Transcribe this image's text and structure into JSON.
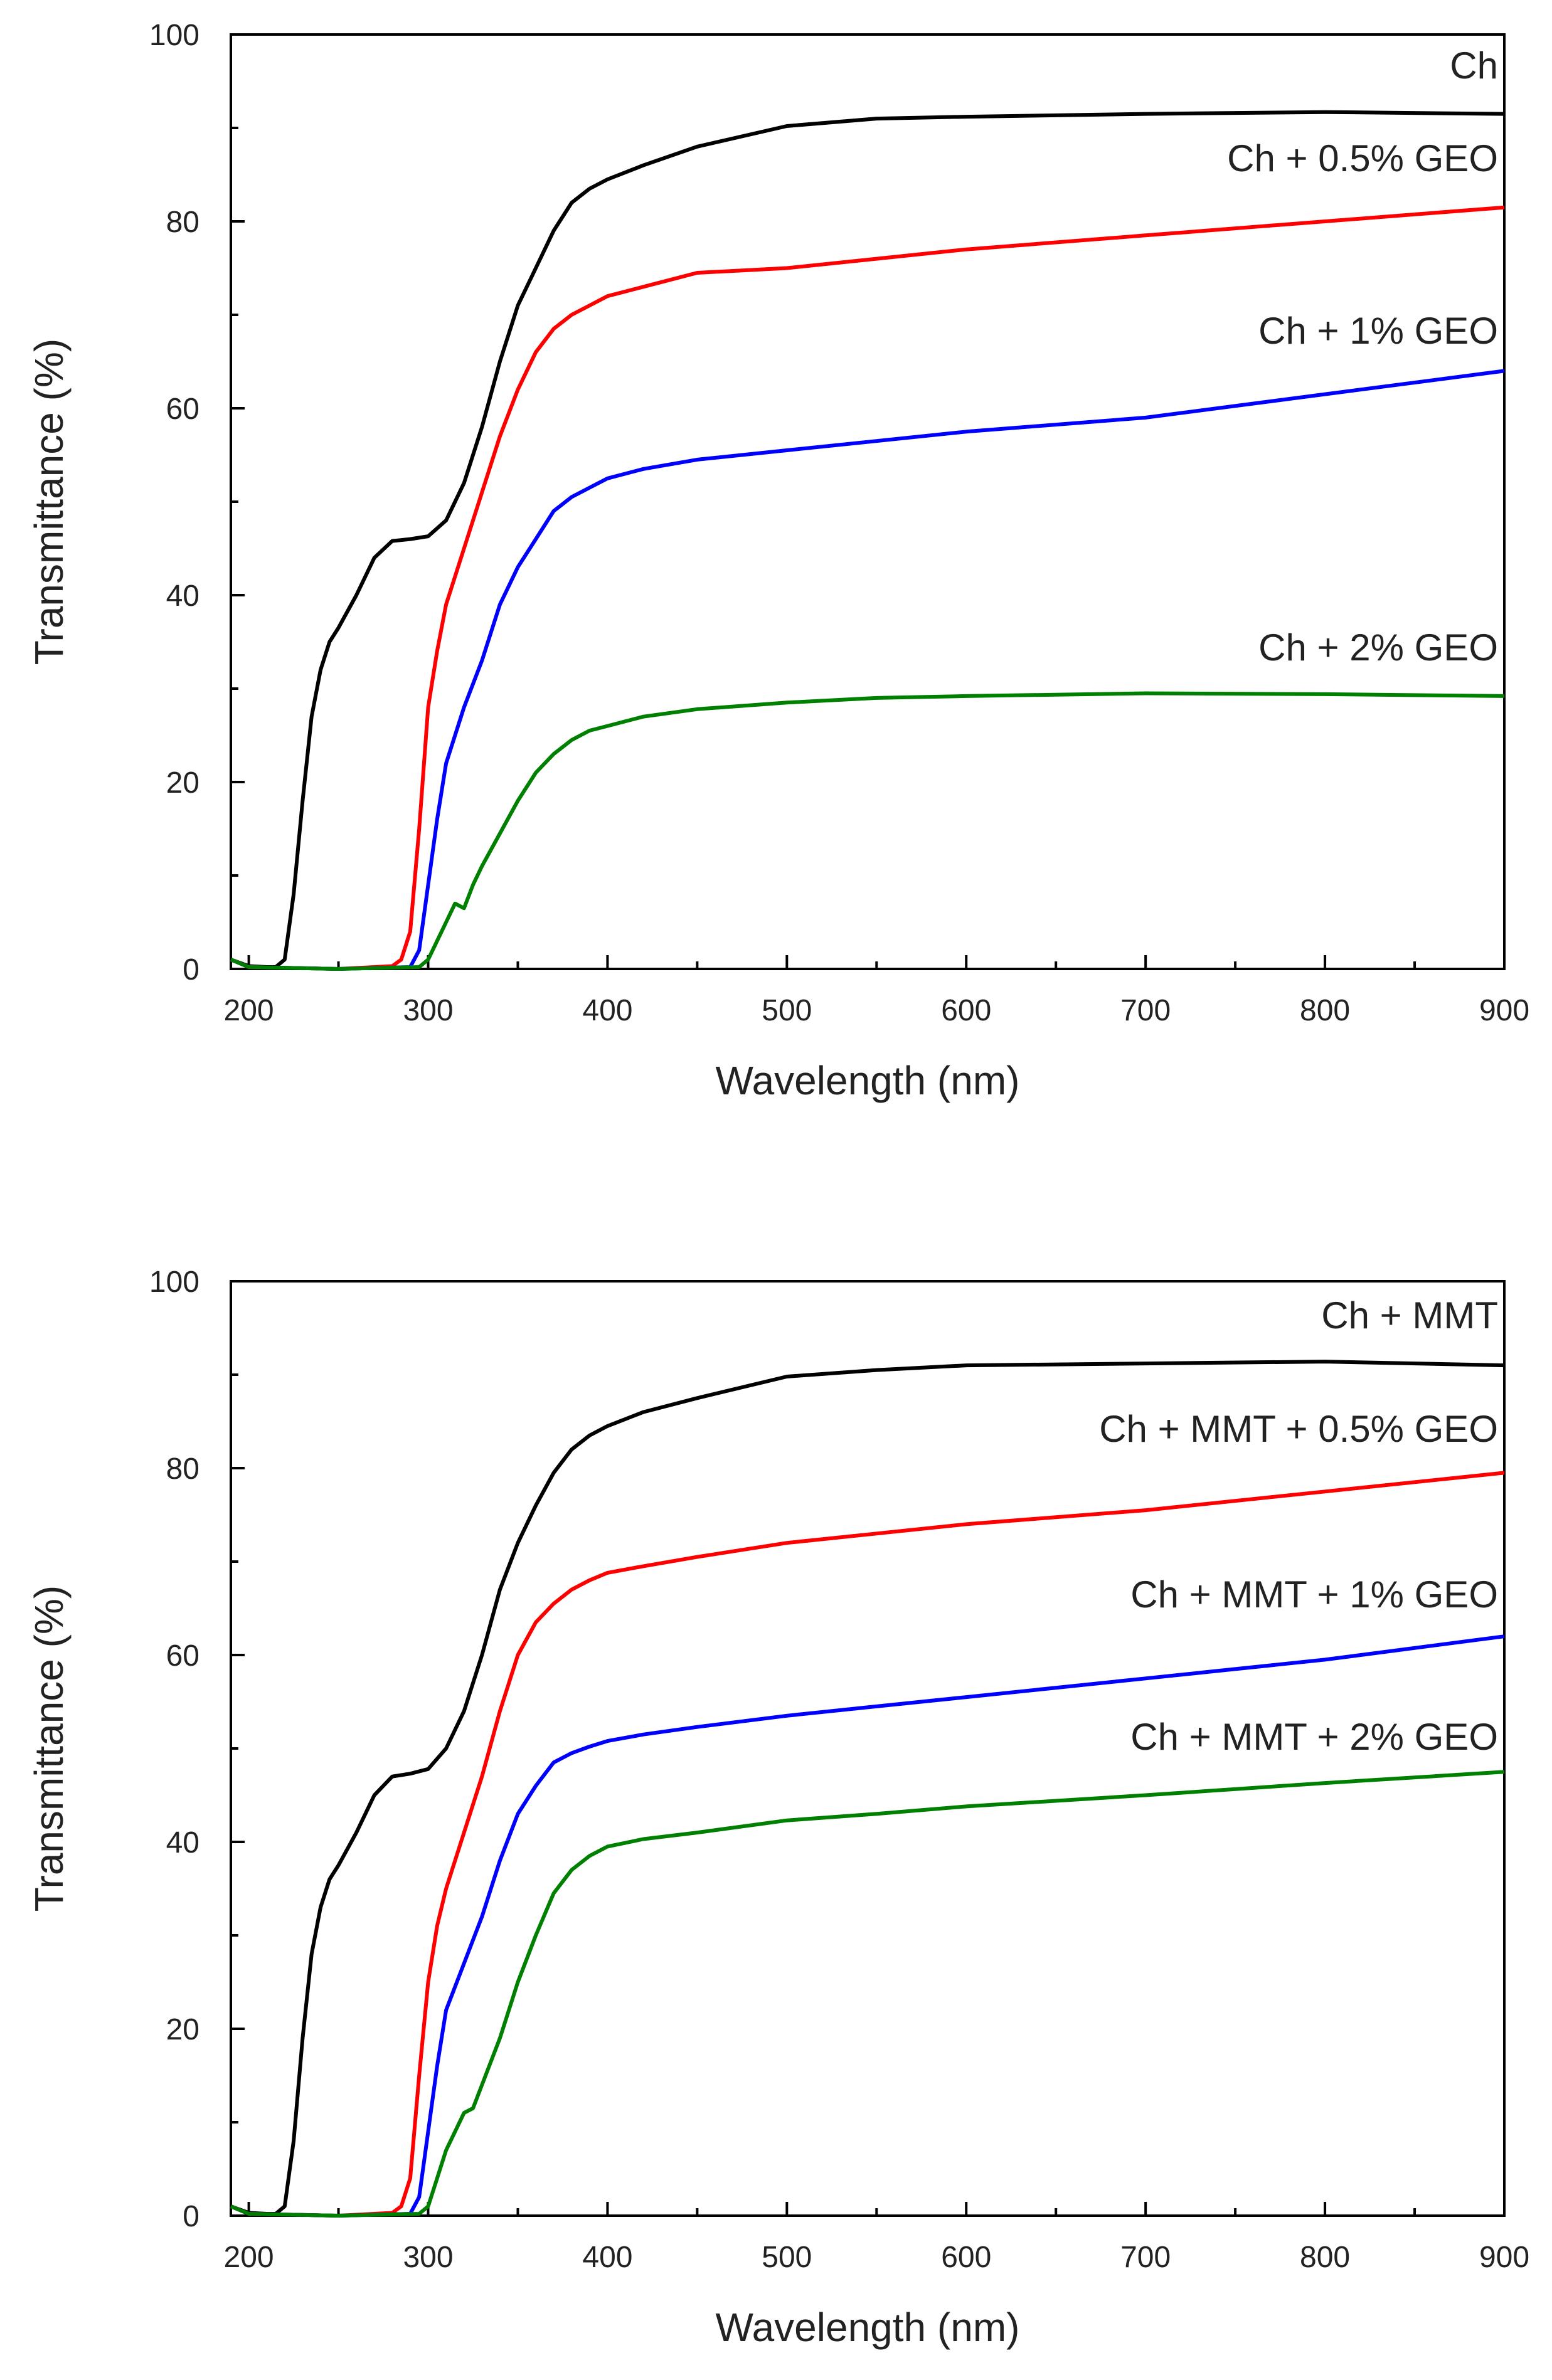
{
  "chart_data": [
    {
      "type": "line",
      "title": "",
      "xlabel": "Wavelength (nm)",
      "ylabel": "Transmittance (%)",
      "xlim": [
        190,
        900
      ],
      "ylim": [
        0,
        100
      ],
      "xticks": [
        200,
        300,
        400,
        500,
        600,
        700,
        800,
        900
      ],
      "yticks": [
        0,
        20,
        40,
        60,
        80,
        100
      ],
      "xtick_labels": [
        "200",
        "300",
        "400",
        "500",
        "600",
        "700",
        "800",
        "900"
      ],
      "ytick_labels": [
        "0",
        "20",
        "40",
        "60",
        "80",
        "100"
      ],
      "grid": false,
      "legend": "inline labels at right end of each curve",
      "series": [
        {
          "name": "Ch",
          "color": "#000000",
          "x": [
            190,
            200,
            210,
            215,
            220,
            225,
            230,
            235,
            240,
            245,
            250,
            260,
            270,
            280,
            290,
            300,
            310,
            320,
            330,
            340,
            350,
            360,
            370,
            380,
            390,
            400,
            420,
            450,
            500,
            550,
            600,
            700,
            800,
            900
          ],
          "y": [
            1,
            0.3,
            0.2,
            0.2,
            1,
            8,
            18,
            27,
            32,
            35,
            36.5,
            40,
            44,
            45.8,
            46,
            46.3,
            48,
            52,
            58,
            65,
            71,
            75,
            79,
            82,
            83.5,
            84.5,
            86,
            88,
            90.2,
            91,
            91.2,
            91.5,
            91.7,
            91.5
          ]
        },
        {
          "name": "Ch + 0.5% GEO",
          "color": "#ff0000",
          "x": [
            190,
            200,
            250,
            280,
            285,
            290,
            295,
            300,
            305,
            310,
            320,
            330,
            340,
            350,
            360,
            370,
            380,
            390,
            400,
            420,
            450,
            500,
            550,
            600,
            700,
            800,
            900
          ],
          "y": [
            1,
            0.2,
            0,
            0.3,
            1,
            4,
            15,
            28,
            34,
            39,
            45,
            51,
            57,
            62,
            66,
            68.5,
            70,
            71,
            72,
            73,
            74.5,
            75,
            76,
            77,
            78.5,
            80,
            81.5
          ]
        },
        {
          "name": "Ch + 1% GEO",
          "color": "#0000ff",
          "x": [
            190,
            200,
            250,
            290,
            295,
            300,
            305,
            310,
            320,
            330,
            340,
            350,
            360,
            370,
            380,
            390,
            400,
            420,
            450,
            500,
            550,
            600,
            700,
            800,
            900
          ],
          "y": [
            1,
            0.2,
            0,
            0.2,
            2,
            9,
            16,
            22,
            28,
            33,
            39,
            43,
            46,
            49,
            50.5,
            51.5,
            52.5,
            53.5,
            54.5,
            55.5,
            56.5,
            57.5,
            59,
            61.5,
            64
          ]
        },
        {
          "name": "Ch + 2% GEO",
          "color": "#008000",
          "x": [
            190,
            200,
            250,
            295,
            300,
            305,
            310,
            315,
            320,
            325,
            330,
            340,
            350,
            360,
            370,
            380,
            390,
            400,
            420,
            450,
            500,
            550,
            600,
            700,
            800,
            900
          ],
          "y": [
            1,
            0.2,
            0,
            0.2,
            1,
            3,
            5,
            7,
            6.5,
            9,
            11,
            14.5,
            18,
            21,
            23,
            24.5,
            25.5,
            26,
            27,
            27.8,
            28.5,
            29,
            29.2,
            29.5,
            29.4,
            29.2
          ]
        }
      ],
      "series_label_text": [
        "Ch",
        "Ch + 0.5% GEO",
        "Ch + 1% GEO",
        "Ch + 2% GEO"
      ]
    },
    {
      "type": "line",
      "title": "",
      "xlabel": "Wavelength (nm)",
      "ylabel": "Transmittance (%)",
      "xlim": [
        190,
        900
      ],
      "ylim": [
        0,
        100
      ],
      "xticks": [
        200,
        300,
        400,
        500,
        600,
        700,
        800,
        900
      ],
      "yticks": [
        0,
        20,
        40,
        60,
        80,
        100
      ],
      "xtick_labels": [
        "200",
        "300",
        "400",
        "500",
        "600",
        "700",
        "800",
        "900"
      ],
      "ytick_labels": [
        "0",
        "20",
        "40",
        "60",
        "80",
        "100"
      ],
      "grid": false,
      "legend": "inline labels at right end of each curve",
      "series": [
        {
          "name": "Ch + MMT",
          "color": "#000000",
          "x": [
            190,
            200,
            210,
            215,
            220,
            225,
            230,
            235,
            240,
            245,
            250,
            260,
            270,
            280,
            290,
            300,
            310,
            320,
            330,
            340,
            350,
            360,
            370,
            380,
            390,
            400,
            420,
            450,
            500,
            550,
            600,
            700,
            800,
            900
          ],
          "y": [
            1,
            0.3,
            0.2,
            0.2,
            1,
            8,
            19,
            28,
            33,
            36,
            37.5,
            41,
            45,
            47,
            47.3,
            47.8,
            50,
            54,
            60,
            67,
            72,
            76,
            79.5,
            82,
            83.5,
            84.5,
            86,
            87.5,
            89.8,
            90.5,
            91,
            91.2,
            91.4,
            91
          ]
        },
        {
          "name": "Ch + MMT + 0.5% GEO",
          "color": "#ff0000",
          "x": [
            190,
            200,
            250,
            280,
            285,
            290,
            295,
            300,
            305,
            310,
            320,
            330,
            340,
            350,
            360,
            370,
            380,
            390,
            400,
            420,
            450,
            500,
            550,
            600,
            700,
            800,
            900
          ],
          "y": [
            1,
            0.2,
            0,
            0.3,
            1,
            4,
            15,
            25,
            31,
            35,
            41,
            47,
            54,
            60,
            63.5,
            65.5,
            67,
            68,
            68.8,
            69.5,
            70.5,
            72,
            73,
            74,
            75.5,
            77.5,
            79.5
          ]
        },
        {
          "name": "Ch + MMT + 1% GEO",
          "color": "#0000ff",
          "x": [
            190,
            200,
            250,
            290,
            295,
            300,
            305,
            310,
            320,
            330,
            340,
            350,
            360,
            370,
            380,
            390,
            400,
            420,
            450,
            500,
            550,
            600,
            700,
            800,
            900
          ],
          "y": [
            1,
            0.2,
            0,
            0.2,
            2,
            9,
            16,
            22,
            27,
            32,
            38,
            43,
            46,
            48.5,
            49.5,
            50.2,
            50.8,
            51.5,
            52.3,
            53.5,
            54.5,
            55.5,
            57.5,
            59.5,
            62
          ]
        },
        {
          "name": "Ch + MMT + 2% GEO",
          "color": "#008000",
          "x": [
            190,
            200,
            250,
            295,
            300,
            305,
            310,
            315,
            320,
            325,
            330,
            340,
            350,
            360,
            370,
            380,
            390,
            400,
            420,
            450,
            500,
            550,
            600,
            700,
            800,
            900
          ],
          "y": [
            1,
            0.2,
            0,
            0.2,
            1,
            4,
            7,
            9,
            11,
            11.5,
            14,
            19,
            25,
            30,
            34.5,
            37,
            38.5,
            39.5,
            40.3,
            41,
            42.3,
            43,
            43.8,
            45,
            46.3,
            47.5
          ]
        }
      ],
      "series_label_text": [
        "Ch + MMT",
        "Ch + MMT + 0.5% GEO",
        "Ch + MMT + 1% GEO",
        "Ch + MMT + 2% GEO"
      ]
    }
  ]
}
